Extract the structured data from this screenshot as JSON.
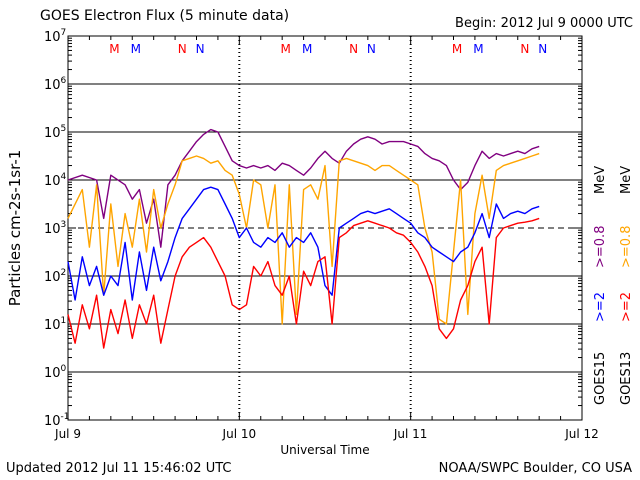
{
  "header": {
    "title": "GOES Electron Flux (5 minute data)",
    "begin": "Begin: 2012 Jul 9 0000 UTC"
  },
  "footer": {
    "updated": "Updated 2012 Jul 11 15:46:02 UTC",
    "credit": "NOAA/SWPC Boulder, CO USA"
  },
  "chart_data": {
    "type": "line",
    "title": "GOES Electron Flux (5 minute data)",
    "xlabel": "Universal Time",
    "ylabel": "Particles cm-2s-1sr-1",
    "xlim": [
      0,
      72
    ],
    "ylim_log10": [
      -1,
      7
    ],
    "y_scale": "log",
    "reference_line_log10": 3,
    "x_ticks": [
      {
        "hour": 0,
        "label": "Jul 9"
      },
      {
        "hour": 24,
        "label": "Jul 10"
      },
      {
        "hour": 48,
        "label": "Jul 11"
      },
      {
        "hour": 72,
        "label": "Jul 12"
      }
    ],
    "y_ticks": [
      {
        "exp": 7,
        "base": "10",
        "sup": "7"
      },
      {
        "exp": 6,
        "base": "10",
        "sup": "6"
      },
      {
        "exp": 5,
        "base": "10",
        "sup": "5"
      },
      {
        "exp": 4,
        "base": "10",
        "sup": "4"
      },
      {
        "exp": 3,
        "base": "10",
        "sup": "3"
      },
      {
        "exp": 2,
        "base": "10",
        "sup": "2"
      },
      {
        "exp": 1,
        "base": "10",
        "sup": "1"
      },
      {
        "exp": 0,
        "base": "10",
        "sup": "0"
      },
      {
        "exp": -1,
        "base": "10",
        "sup": "-1"
      }
    ],
    "markers": [
      {
        "hour": 6.5,
        "label": "M",
        "color": "#ff0000"
      },
      {
        "hour": 9.5,
        "label": "M",
        "color": "#0000ff"
      },
      {
        "hour": 16.0,
        "label": "N",
        "color": "#ff0000"
      },
      {
        "hour": 18.5,
        "label": "N",
        "color": "#0000ff"
      },
      {
        "hour": 30.5,
        "label": "M",
        "color": "#ff0000"
      },
      {
        "hour": 33.5,
        "label": "M",
        "color": "#0000ff"
      },
      {
        "hour": 40.0,
        "label": "N",
        "color": "#ff0000"
      },
      {
        "hour": 42.5,
        "label": "N",
        "color": "#0000ff"
      },
      {
        "hour": 54.5,
        "label": "M",
        "color": "#ff0000"
      },
      {
        "hour": 57.5,
        "label": "M",
        "color": "#0000ff"
      },
      {
        "hour": 64.0,
        "label": "N",
        "color": "#ff0000"
      },
      {
        "hour": 66.5,
        "label": "N",
        "color": "#0000ff"
      }
    ],
    "legend": [
      {
        "label": "GOES15",
        "color": "#000000"
      },
      {
        "label": ">=2",
        "color": "#0000ff"
      },
      {
        "label": ">=0.8",
        "color": "#800080"
      },
      {
        "label": "MeV",
        "color": "#000000"
      },
      {
        "label": "GOES13",
        "color": "#000000"
      },
      {
        "label": ">=2",
        "color": "#ff0000"
      },
      {
        "label": ">=0.8",
        "color": "#ffa500"
      },
      {
        "label": "MeV",
        "color": "#000000"
      }
    ],
    "series": [
      {
        "name": "GOES15 >=0.8 MeV",
        "color": "#800080",
        "points": [
          [
            0,
            4.0
          ],
          [
            2,
            4.1
          ],
          [
            4,
            4.0
          ],
          [
            5,
            3.2
          ],
          [
            6,
            4.1
          ],
          [
            8,
            3.9
          ],
          [
            9,
            3.6
          ],
          [
            10,
            3.8
          ],
          [
            11,
            3.1
          ],
          [
            12,
            3.6
          ],
          [
            13,
            2.6
          ],
          [
            14,
            3.9
          ],
          [
            15,
            4.1
          ],
          [
            16,
            4.4
          ],
          [
            17,
            4.6
          ],
          [
            18,
            4.8
          ],
          [
            19,
            4.95
          ],
          [
            20,
            5.05
          ],
          [
            21,
            5.0
          ],
          [
            22,
            4.7
          ],
          [
            23,
            4.4
          ],
          [
            24,
            4.3
          ],
          [
            25,
            4.25
          ],
          [
            26,
            4.3
          ],
          [
            27,
            4.25
          ],
          [
            28,
            4.3
          ],
          [
            29,
            4.2
          ],
          [
            30,
            4.35
          ],
          [
            31,
            4.3
          ],
          [
            32,
            4.2
          ],
          [
            33,
            4.1
          ],
          [
            34,
            4.25
          ],
          [
            35,
            4.45
          ],
          [
            36,
            4.6
          ],
          [
            37,
            4.45
          ],
          [
            38,
            4.35
          ],
          [
            39,
            4.6
          ],
          [
            40,
            4.75
          ],
          [
            41,
            4.85
          ],
          [
            42,
            4.9
          ],
          [
            43,
            4.85
          ],
          [
            44,
            4.75
          ],
          [
            45,
            4.8
          ],
          [
            46,
            4.8
          ],
          [
            47,
            4.8
          ],
          [
            48,
            4.75
          ],
          [
            49,
            4.7
          ],
          [
            50,
            4.55
          ],
          [
            51,
            4.45
          ],
          [
            52,
            4.4
          ],
          [
            53,
            4.3
          ],
          [
            54,
            4.0
          ],
          [
            55,
            3.8
          ],
          [
            56,
            3.95
          ],
          [
            57,
            4.3
          ],
          [
            58,
            4.6
          ],
          [
            59,
            4.45
          ],
          [
            60,
            4.55
          ],
          [
            61,
            4.5
          ],
          [
            62,
            4.55
          ],
          [
            63,
            4.6
          ],
          [
            64,
            4.55
          ],
          [
            65,
            4.65
          ],
          [
            66,
            4.7
          ]
        ]
      },
      {
        "name": "GOES13 >=0.8 MeV",
        "color": "#ffa500",
        "points": [
          [
            0,
            3.2
          ],
          [
            2,
            3.8
          ],
          [
            3,
            2.6
          ],
          [
            4,
            3.9
          ],
          [
            5,
            1.6
          ],
          [
            6,
            3.5
          ],
          [
            7,
            2.2
          ],
          [
            8,
            3.3
          ],
          [
            9,
            2.6
          ],
          [
            10,
            3.6
          ],
          [
            11,
            2.5
          ],
          [
            12,
            3.8
          ],
          [
            13,
            3.0
          ],
          [
            14,
            3.5
          ],
          [
            15,
            3.9
          ],
          [
            16,
            4.4
          ],
          [
            17,
            4.45
          ],
          [
            18,
            4.5
          ],
          [
            19,
            4.45
          ],
          [
            20,
            4.35
          ],
          [
            21,
            4.4
          ],
          [
            22,
            4.2
          ],
          [
            23,
            4.1
          ],
          [
            24,
            3.7
          ],
          [
            25,
            3.0
          ],
          [
            26,
            4.0
          ],
          [
            27,
            3.9
          ],
          [
            28,
            3.0
          ],
          [
            29,
            3.9
          ],
          [
            30,
            1.0
          ],
          [
            31,
            3.9
          ],
          [
            32,
            1.2
          ],
          [
            33,
            3.8
          ],
          [
            34,
            3.9
          ],
          [
            35,
            3.6
          ],
          [
            36,
            4.3
          ],
          [
            37,
            2.2
          ],
          [
            38,
            4.4
          ],
          [
            39,
            4.45
          ],
          [
            40,
            4.4
          ],
          [
            41,
            4.35
          ],
          [
            42,
            4.3
          ],
          [
            43,
            4.2
          ],
          [
            44,
            4.3
          ],
          [
            45,
            4.3
          ],
          [
            46,
            4.2
          ],
          [
            47,
            4.1
          ],
          [
            48,
            4.0
          ],
          [
            49,
            3.9
          ],
          [
            50,
            3.0
          ],
          [
            51,
            2.5
          ],
          [
            52,
            1.1
          ],
          [
            53,
            1.0
          ],
          [
            54,
            2.5
          ],
          [
            55,
            4.0
          ],
          [
            56,
            1.2
          ],
          [
            57,
            3.3
          ],
          [
            58,
            4.1
          ],
          [
            59,
            3.2
          ],
          [
            60,
            4.2
          ],
          [
            61,
            4.3
          ],
          [
            62,
            4.35
          ],
          [
            63,
            4.4
          ],
          [
            64,
            4.45
          ],
          [
            65,
            4.5
          ],
          [
            66,
            4.55
          ]
        ]
      },
      {
        "name": "GOES15 >=2 MeV",
        "color": "#0000ff",
        "points": [
          [
            0,
            2.3
          ],
          [
            1,
            1.5
          ],
          [
            2,
            2.4
          ],
          [
            3,
            1.8
          ],
          [
            4,
            2.2
          ],
          [
            5,
            1.6
          ],
          [
            6,
            2.0
          ],
          [
            7,
            1.8
          ],
          [
            8,
            2.7
          ],
          [
            9,
            1.5
          ],
          [
            10,
            2.5
          ],
          [
            11,
            1.7
          ],
          [
            12,
            2.6
          ],
          [
            13,
            1.9
          ],
          [
            14,
            2.3
          ],
          [
            15,
            2.8
          ],
          [
            16,
            3.2
          ],
          [
            17,
            3.4
          ],
          [
            18,
            3.6
          ],
          [
            19,
            3.8
          ],
          [
            20,
            3.85
          ],
          [
            21,
            3.8
          ],
          [
            22,
            3.5
          ],
          [
            23,
            3.2
          ],
          [
            24,
            2.8
          ],
          [
            25,
            3.0
          ],
          [
            26,
            2.7
          ],
          [
            27,
            2.6
          ],
          [
            28,
            2.8
          ],
          [
            29,
            2.7
          ],
          [
            30,
            2.9
          ],
          [
            31,
            2.6
          ],
          [
            32,
            2.8
          ],
          [
            33,
            2.7
          ],
          [
            34,
            2.9
          ],
          [
            35,
            2.6
          ],
          [
            36,
            1.8
          ],
          [
            37,
            1.6
          ],
          [
            38,
            3.0
          ],
          [
            39,
            3.1
          ],
          [
            40,
            3.2
          ],
          [
            41,
            3.3
          ],
          [
            42,
            3.35
          ],
          [
            43,
            3.3
          ],
          [
            44,
            3.35
          ],
          [
            45,
            3.4
          ],
          [
            46,
            3.3
          ],
          [
            47,
            3.2
          ],
          [
            48,
            3.1
          ],
          [
            49,
            2.9
          ],
          [
            50,
            2.8
          ],
          [
            51,
            2.6
          ],
          [
            52,
            2.5
          ],
          [
            53,
            2.4
          ],
          [
            54,
            2.3
          ],
          [
            55,
            2.5
          ],
          [
            56,
            2.6
          ],
          [
            57,
            2.9
          ],
          [
            58,
            3.3
          ],
          [
            59,
            2.8
          ],
          [
            60,
            3.5
          ],
          [
            61,
            3.2
          ],
          [
            62,
            3.3
          ],
          [
            63,
            3.35
          ],
          [
            64,
            3.3
          ],
          [
            65,
            3.4
          ],
          [
            66,
            3.45
          ]
        ]
      },
      {
        "name": "GOES13 >=2 MeV",
        "color": "#ff0000",
        "points": [
          [
            0,
            1.2
          ],
          [
            1,
            0.6
          ],
          [
            2,
            1.4
          ],
          [
            3,
            0.9
          ],
          [
            4,
            1.6
          ],
          [
            5,
            0.5
          ],
          [
            6,
            1.3
          ],
          [
            7,
            0.8
          ],
          [
            8,
            1.5
          ],
          [
            9,
            0.7
          ],
          [
            10,
            1.4
          ],
          [
            11,
            1.0
          ],
          [
            12,
            1.6
          ],
          [
            13,
            0.6
          ],
          [
            14,
            1.3
          ],
          [
            15,
            2.0
          ],
          [
            16,
            2.4
          ],
          [
            17,
            2.6
          ],
          [
            18,
            2.7
          ],
          [
            19,
            2.8
          ],
          [
            20,
            2.6
          ],
          [
            21,
            2.3
          ],
          [
            22,
            2.0
          ],
          [
            23,
            1.4
          ],
          [
            24,
            1.3
          ],
          [
            25,
            1.4
          ],
          [
            26,
            2.2
          ],
          [
            27,
            2.0
          ],
          [
            28,
            2.3
          ],
          [
            29,
            1.8
          ],
          [
            30,
            1.6
          ],
          [
            31,
            2.0
          ],
          [
            32,
            1.0
          ],
          [
            33,
            2.1
          ],
          [
            34,
            1.8
          ],
          [
            35,
            2.3
          ],
          [
            36,
            2.4
          ],
          [
            37,
            1.0
          ],
          [
            38,
            2.8
          ],
          [
            39,
            2.9
          ],
          [
            40,
            3.05
          ],
          [
            41,
            3.1
          ],
          [
            42,
            3.15
          ],
          [
            43,
            3.1
          ],
          [
            44,
            3.05
          ],
          [
            45,
            3.0
          ],
          [
            46,
            2.9
          ],
          [
            47,
            2.85
          ],
          [
            48,
            2.7
          ],
          [
            49,
            2.5
          ],
          [
            50,
            2.2
          ],
          [
            51,
            1.8
          ],
          [
            52,
            0.9
          ],
          [
            53,
            0.7
          ],
          [
            54,
            0.9
          ],
          [
            55,
            1.5
          ],
          [
            56,
            1.8
          ],
          [
            57,
            2.3
          ],
          [
            58,
            2.6
          ],
          [
            59,
            1.0
          ],
          [
            60,
            2.8
          ],
          [
            61,
            3.0
          ],
          [
            62,
            3.05
          ],
          [
            63,
            3.1
          ],
          [
            64,
            3.12
          ],
          [
            65,
            3.15
          ],
          [
            66,
            3.2
          ]
        ]
      }
    ]
  }
}
